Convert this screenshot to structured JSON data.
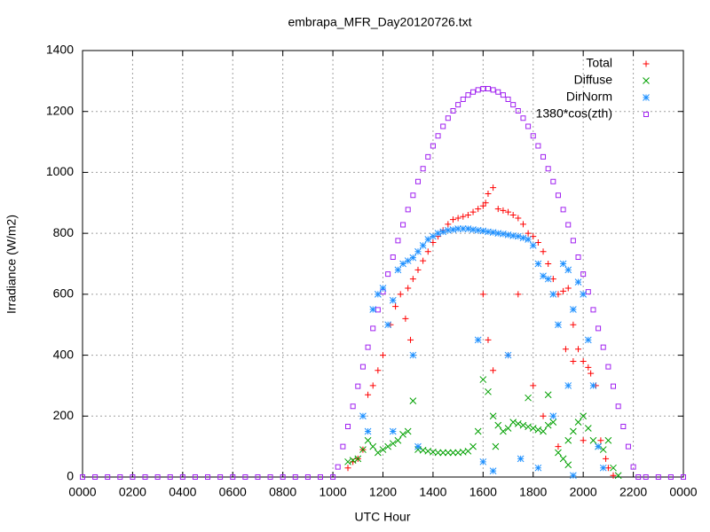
{
  "chart_data": {
    "type": "scatter",
    "title": "embrapa_MFR_Day20120726.txt",
    "x_label": "UTC Hour",
    "y_label": "Irradiance (W/m2)",
    "xlim": [
      0,
      24
    ],
    "ylim": [
      0,
      1400
    ],
    "xticks": [
      {
        "value": 0,
        "label": "0000"
      },
      {
        "value": 2,
        "label": "0200"
      },
      {
        "value": 4,
        "label": "0400"
      },
      {
        "value": 6,
        "label": "0600"
      },
      {
        "value": 8,
        "label": "0800"
      },
      {
        "value": 10,
        "label": "1000"
      },
      {
        "value": 12,
        "label": "1200"
      },
      {
        "value": 14,
        "label": "1400"
      },
      {
        "value": 16,
        "label": "1600"
      },
      {
        "value": 18,
        "label": "1800"
      },
      {
        "value": 20,
        "label": "2000"
      },
      {
        "value": 22,
        "label": "2200"
      },
      {
        "value": 24,
        "label": "0000"
      }
    ],
    "yticks": [
      0,
      200,
      400,
      600,
      800,
      1000,
      1200,
      1400
    ],
    "grid": true,
    "legend": "top-right",
    "series": [
      {
        "name": "Total",
        "color": "#ff0000",
        "marker": "plus",
        "x": [
          10.6,
          10.8,
          11.0,
          11.2,
          11.4,
          11.6,
          11.8,
          12.0,
          12.3,
          12.5,
          12.7,
          13.0,
          13.2,
          13.4,
          13.6,
          13.8,
          14.0,
          14.2,
          14.4,
          14.6,
          14.8,
          15.0,
          15.2,
          15.4,
          15.6,
          15.8,
          16.0,
          16.1,
          16.2,
          16.4,
          16.6,
          16.8,
          17.0,
          17.2,
          17.4,
          17.6,
          17.8,
          18.0,
          18.2,
          18.4,
          18.6,
          18.8,
          19.0,
          19.2,
          19.4,
          19.6,
          19.8,
          20.0,
          20.2,
          20.3,
          20.5,
          20.7,
          20.9,
          21.0,
          21.2,
          16.0,
          16.2,
          16.4,
          17.0,
          17.4,
          18.0,
          18.4,
          19.0,
          19.3,
          19.6,
          20.0,
          13.1,
          12.9
        ],
        "values": [
          30,
          50,
          60,
          90,
          270,
          300,
          350,
          400,
          500,
          560,
          600,
          620,
          650,
          680,
          710,
          740,
          770,
          790,
          810,
          830,
          845,
          850,
          855,
          860,
          870,
          880,
          890,
          900,
          930,
          950,
          880,
          875,
          870,
          860,
          850,
          830,
          800,
          790,
          770,
          740,
          700,
          650,
          600,
          610,
          620,
          500,
          420,
          380,
          360,
          340,
          300,
          120,
          60,
          30,
          5,
          600,
          450,
          350,
          400,
          600,
          300,
          200,
          100,
          420,
          380,
          120,
          450,
          520
        ]
      },
      {
        "name": "Diffuse",
        "color": "#00a000",
        "marker": "cross",
        "x": [
          10.6,
          10.8,
          11.0,
          11.2,
          11.4,
          11.6,
          11.8,
          12.0,
          12.2,
          12.4,
          12.6,
          12.8,
          13.0,
          13.2,
          13.4,
          13.6,
          13.8,
          14.0,
          14.2,
          14.4,
          14.6,
          14.8,
          15.0,
          15.2,
          15.4,
          15.6,
          15.8,
          16.0,
          16.2,
          16.4,
          16.6,
          16.8,
          17.0,
          17.2,
          17.4,
          17.6,
          17.8,
          18.0,
          18.2,
          18.4,
          18.6,
          18.8,
          19.0,
          19.2,
          19.4,
          19.6,
          19.8,
          20.0,
          20.2,
          20.4,
          20.6,
          20.8,
          21.0,
          21.2,
          21.4,
          16.5,
          17.8,
          18.6,
          19.4
        ],
        "values": [
          50,
          55,
          60,
          90,
          120,
          100,
          80,
          90,
          100,
          110,
          120,
          140,
          150,
          250,
          90,
          88,
          85,
          82,
          80,
          80,
          80,
          80,
          80,
          82,
          85,
          100,
          150,
          320,
          280,
          200,
          170,
          150,
          160,
          180,
          175,
          170,
          165,
          160,
          155,
          150,
          170,
          180,
          80,
          60,
          120,
          150,
          180,
          200,
          160,
          120,
          100,
          90,
          120,
          30,
          5,
          100,
          260,
          270,
          40
        ]
      },
      {
        "name": "DirNorm",
        "color": "#1e90ff",
        "marker": "star",
        "x": [
          11.4,
          11.6,
          11.8,
          12.0,
          12.2,
          12.4,
          12.6,
          12.8,
          13.0,
          13.2,
          13.4,
          13.6,
          13.8,
          14.0,
          14.2,
          14.4,
          14.6,
          14.8,
          15.0,
          15.2,
          15.4,
          15.6,
          15.8,
          16.0,
          16.2,
          16.4,
          16.6,
          16.8,
          17.0,
          17.2,
          17.4,
          17.6,
          17.8,
          18.0,
          18.2,
          18.4,
          18.6,
          18.8,
          19.0,
          19.2,
          19.4,
          19.6,
          19.8,
          20.0,
          20.2,
          20.4,
          20.6,
          20.8,
          11.2,
          12.4,
          13.2,
          13.4,
          15.8,
          16.0,
          16.4,
          17.0,
          17.5,
          18.2,
          18.8,
          19.4,
          19.6
        ],
        "values": [
          150,
          550,
          600,
          620,
          500,
          580,
          680,
          700,
          710,
          720,
          740,
          760,
          780,
          790,
          800,
          805,
          810,
          812,
          815,
          815,
          815,
          812,
          810,
          808,
          805,
          803,
          800,
          798,
          795,
          792,
          790,
          785,
          780,
          760,
          700,
          660,
          650,
          600,
          500,
          700,
          680,
          550,
          640,
          600,
          450,
          300,
          100,
          30,
          200,
          150,
          400,
          100,
          450,
          50,
          20,
          400,
          60,
          30,
          200,
          300,
          5
        ]
      },
      {
        "name": "1380*cos(zth)",
        "color": "#a020f0",
        "marker": "square",
        "x": [
          0,
          0.5,
          1,
          1.5,
          2,
          2.5,
          3,
          3.5,
          4,
          4.5,
          5,
          5.5,
          6,
          6.5,
          7,
          7.5,
          8,
          8.5,
          9,
          9.5,
          10.0,
          10.2,
          10.4,
          10.6,
          10.8,
          11.0,
          11.2,
          11.4,
          11.6,
          11.8,
          12.0,
          12.2,
          12.4,
          12.6,
          12.8,
          13.0,
          13.2,
          13.4,
          13.6,
          13.8,
          14.0,
          14.2,
          14.4,
          14.6,
          14.8,
          15.0,
          15.2,
          15.4,
          15.6,
          15.8,
          16.0,
          16.2,
          16.4,
          16.6,
          16.8,
          17.0,
          17.2,
          17.4,
          17.6,
          17.8,
          18.0,
          18.2,
          18.4,
          18.6,
          18.8,
          19.0,
          19.2,
          19.4,
          19.6,
          19.8,
          20.0,
          20.2,
          20.4,
          20.6,
          20.8,
          21.0,
          21.2,
          21.4,
          21.6,
          21.8,
          22.0,
          22.2,
          22.5,
          23,
          23.5,
          24
        ],
        "values": [
          0,
          0,
          0,
          0,
          0,
          0,
          0,
          0,
          0,
          0,
          0,
          0,
          0,
          0,
          0,
          0,
          0,
          0,
          0,
          0,
          0,
          33,
          100,
          166,
          232,
          298,
          362,
          426,
          488,
          549,
          608,
          666,
          722,
          776,
          828,
          878,
          925,
          970,
          1012,
          1051,
          1087,
          1120,
          1151,
          1178,
          1202,
          1222,
          1240,
          1254,
          1264,
          1271,
          1275,
          1275,
          1271,
          1264,
          1254,
          1240,
          1222,
          1202,
          1178,
          1151,
          1120,
          1087,
          1051,
          1012,
          970,
          925,
          878,
          828,
          776,
          722,
          666,
          608,
          549,
          488,
          426,
          362,
          298,
          232,
          166,
          100,
          33,
          0,
          0,
          0,
          0,
          0
        ]
      }
    ]
  }
}
